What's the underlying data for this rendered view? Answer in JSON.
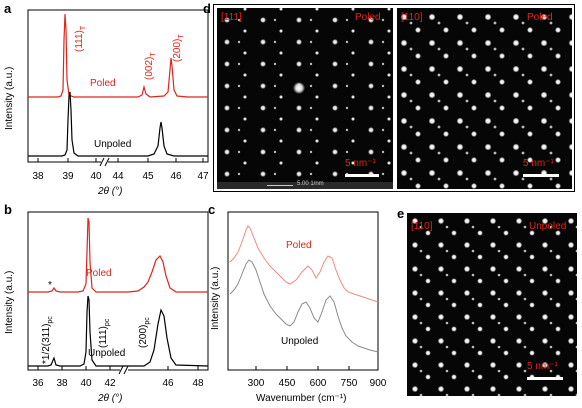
{
  "figure": {
    "a": {
      "label": "a",
      "ylabel": "Intensity (a.u.)",
      "xlabel": "2θ (°)",
      "xticks_left": [
        "38",
        "39",
        "40"
      ],
      "xticks_right": [
        "44",
        "45",
        "46",
        "47"
      ],
      "peaks": {
        "p111": "(111)",
        "p002": "(002)",
        "p200": "(200)",
        "sub": "T"
      },
      "poled": "Poled",
      "unpoled": "Unpoled"
    },
    "b": {
      "label": "b",
      "ylabel": "Intensity (a.u.)",
      "xlabel": "2θ (°)",
      "xticks_left": [
        "36",
        "38",
        "40",
        "42"
      ],
      "xticks_right": [
        "46",
        "48"
      ],
      "star": "*",
      "peak311": "*1/2(311)",
      "peak111": "(111)",
      "peak200": "(200)",
      "sub": "pc",
      "poled": "Poled",
      "unpoled": "Unpoled"
    },
    "c": {
      "label": "c",
      "ylabel": "Intensity (a.u.)",
      "xlabel": "Wavenumber (cm⁻¹)",
      "xticks": [
        "300",
        "450",
        "600",
        "750",
        "900"
      ],
      "poled": "Poled",
      "unpoled": "Unpoled"
    },
    "d": {
      "label": "d",
      "left_zone": "[111]",
      "left_state": "Poled",
      "right_zone": "[110]",
      "right_state": "Poled",
      "scalebar": "5 nm⁻¹",
      "microscope_scale": "5.00 1/nm"
    },
    "e": {
      "label": "e",
      "zone": "[110]",
      "state": "Unpoled",
      "scalebar": "5 nm⁻¹"
    }
  },
  "colors": {
    "poled": "#e0241b",
    "unpoled": "#000000",
    "raman_poled": "#f08a80",
    "raman_unpoled": "#8a8a8a"
  }
}
